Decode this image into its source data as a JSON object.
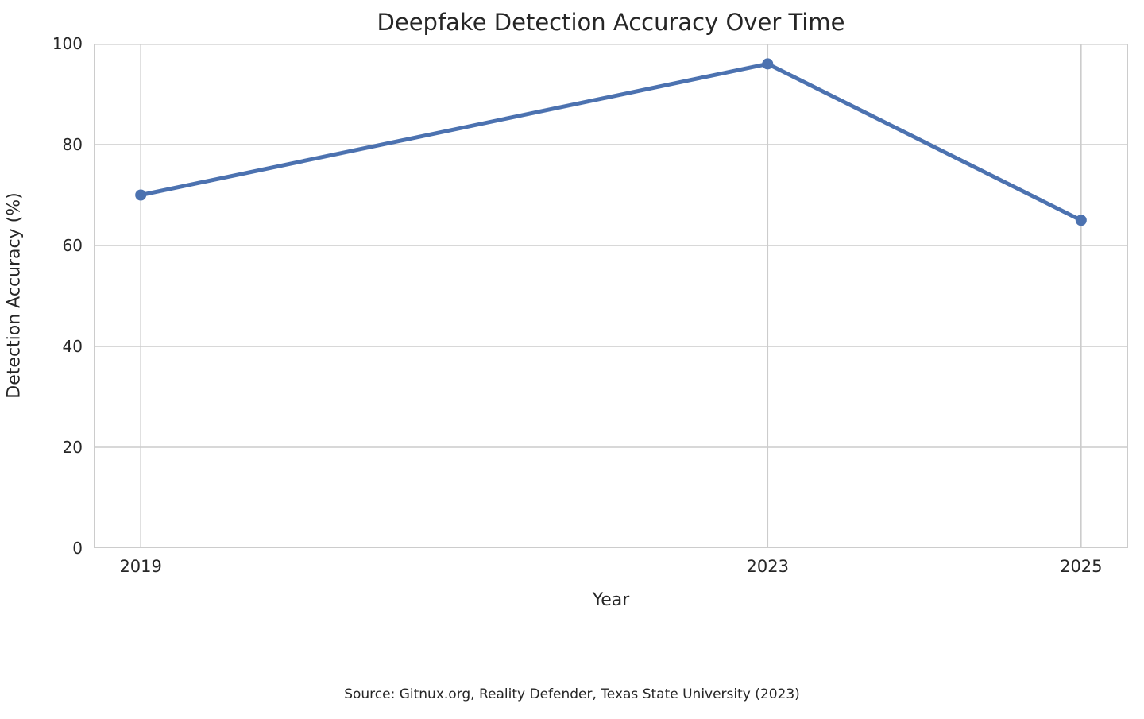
{
  "chart": {
    "title": "Deepfake Detection Accuracy Over Time",
    "xlabel": "Year",
    "ylabel": "Detection Accuracy (%)",
    "source": "Source: Gitnux.org, Reality Defender, Texas State University (2023)"
  },
  "chart_data": {
    "type": "line",
    "x": [
      2019,
      2023,
      2025
    ],
    "values": [
      70,
      96,
      65
    ],
    "series_name": "Detection Accuracy",
    "title": "Deepfake Detection Accuracy Over Time",
    "xlabel": "Year",
    "ylabel": "Detection Accuracy (%)",
    "xlim": [
      2018.7,
      2025.3
    ],
    "ylim": [
      0,
      100
    ],
    "xticks": [
      2019,
      2023,
      2025
    ],
    "yticks": [
      0,
      20,
      40,
      60,
      80,
      100
    ],
    "grid": true,
    "legend": "none",
    "annotation": "Source: Gitnux.org, Reality Defender, Texas State University (2023)",
    "colors": {
      "line": "#4C72B0",
      "marker": "#4C72B0",
      "grid": "#CCCCCC",
      "spine": "#CCCCCC",
      "text": "#262626",
      "background": "#FFFFFF"
    },
    "line_width": 5,
    "marker_radius": 7
  }
}
